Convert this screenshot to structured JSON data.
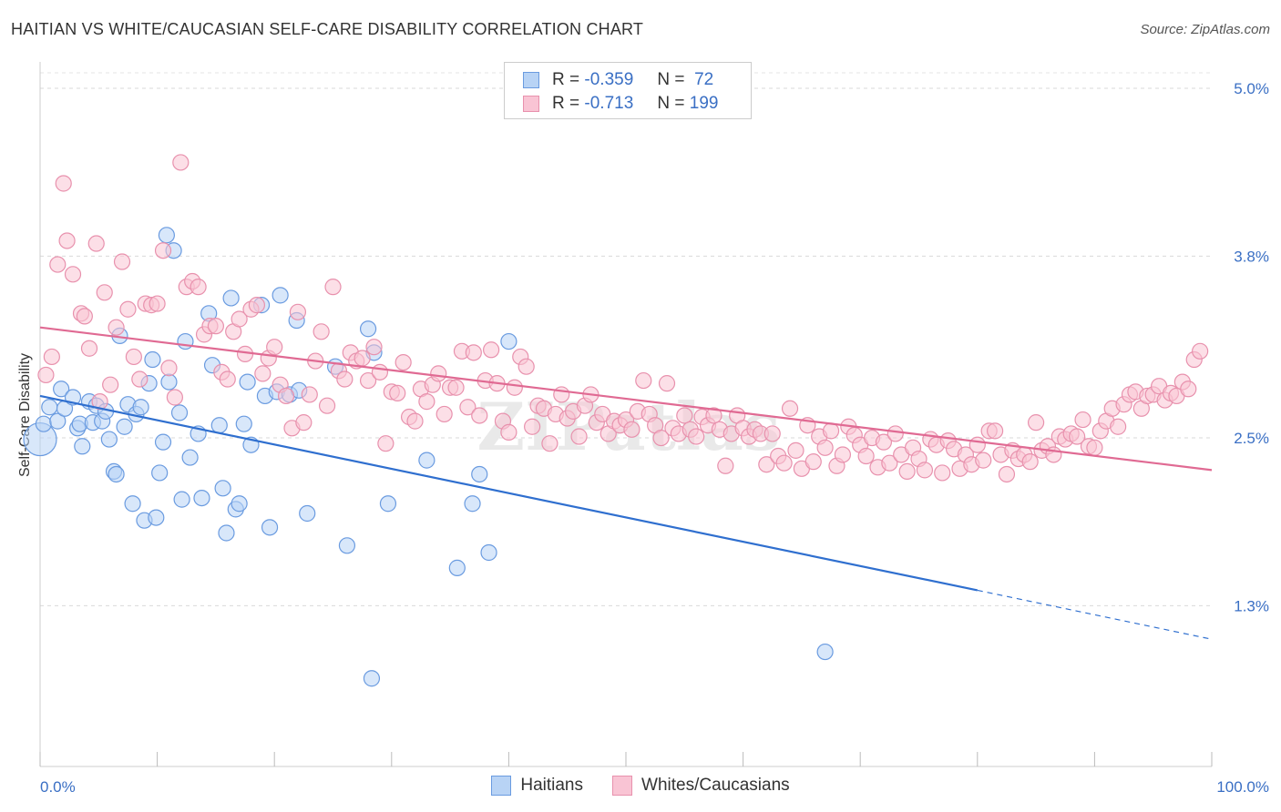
{
  "title": "HAITIAN VS WHITE/CAUCASIAN SELF-CARE DISABILITY CORRELATION CHART",
  "source": "Source: ZipAtlas.com",
  "watermark": "ZIPatlas",
  "legend": {
    "r_label": "R =",
    "n_label": "N =",
    "rows": [
      {
        "r": "-0.359",
        "n": "72",
        "color": "#b8d3f5",
        "stroke": "#6a9be0"
      },
      {
        "r": "-0.713",
        "n": "199",
        "color": "#f9c4d4",
        "stroke": "#e891ad"
      }
    ]
  },
  "bottom_legend": [
    {
      "label": "Haitians",
      "color": "#b8d3f5",
      "stroke": "#6a9be0"
    },
    {
      "label": "Whites/Caucasians",
      "color": "#f9c4d4",
      "stroke": "#e891ad"
    }
  ],
  "chart_data": {
    "type": "scatter",
    "title": "HAITIAN VS WHITE/CAUCASIAN SELF-CARE DISABILITY CORRELATION CHART",
    "xlabel": "",
    "ylabel": "Self-Care Disability",
    "x_tick_labels": [
      "0.0%",
      "100.0%"
    ],
    "y_tick_labels": [
      "5.0%",
      "3.8%",
      "2.5%",
      "1.3%"
    ],
    "y_ticks": [
      5.0,
      3.8,
      2.5,
      1.3
    ],
    "xlim": [
      0,
      100
    ],
    "ylim": [
      0.15,
      5.15
    ],
    "grid": "horizontal dashed",
    "legend_position": "top-center",
    "series": [
      {
        "name": "Haitians",
        "color": "#6a9be0",
        "fill": "#b8d3f5",
        "trend": {
          "x": [
            0,
            80
          ],
          "y": [
            2.8,
            1.41
          ],
          "dashed_to": [
            100,
            1.06
          ]
        },
        "points": [
          [
            0,
            2.49
          ],
          [
            0.3,
            2.6
          ],
          [
            0.8,
            2.72
          ],
          [
            1.5,
            2.62
          ],
          [
            1.8,
            2.85
          ],
          [
            2.1,
            2.71
          ],
          [
            2.8,
            2.79
          ],
          [
            3.2,
            2.57
          ],
          [
            3.4,
            2.6
          ],
          [
            3.6,
            2.44
          ],
          [
            4.2,
            2.76
          ],
          [
            4.5,
            2.61
          ],
          [
            4.8,
            2.73
          ],
          [
            5.3,
            2.62
          ],
          [
            5.6,
            2.69
          ],
          [
            5.9,
            2.49
          ],
          [
            6.3,
            2.26
          ],
          [
            6.5,
            2.24
          ],
          [
            6.8,
            3.23
          ],
          [
            7.2,
            2.58
          ],
          [
            7.5,
            2.74
          ],
          [
            7.9,
            2.03
          ],
          [
            8.2,
            2.67
          ],
          [
            8.6,
            2.72
          ],
          [
            8.9,
            1.91
          ],
          [
            9.3,
            2.89
          ],
          [
            9.6,
            3.06
          ],
          [
            9.9,
            1.93
          ],
          [
            10.2,
            2.25
          ],
          [
            10.5,
            2.47
          ],
          [
            10.8,
            3.95
          ],
          [
            11.0,
            2.9
          ],
          [
            11.4,
            3.84
          ],
          [
            11.9,
            2.68
          ],
          [
            12.1,
            2.06
          ],
          [
            12.4,
            3.19
          ],
          [
            12.8,
            2.36
          ],
          [
            13.5,
            2.53
          ],
          [
            13.8,
            2.07
          ],
          [
            14.4,
            3.39
          ],
          [
            14.7,
            3.02
          ],
          [
            15.3,
            2.59
          ],
          [
            15.6,
            2.14
          ],
          [
            15.9,
            1.82
          ],
          [
            16.3,
            3.5
          ],
          [
            16.7,
            1.99
          ],
          [
            17.0,
            2.03
          ],
          [
            17.4,
            2.6
          ],
          [
            17.7,
            2.9
          ],
          [
            18.0,
            2.45
          ],
          [
            18.9,
            3.45
          ],
          [
            19.2,
            2.8
          ],
          [
            19.6,
            1.86
          ],
          [
            20.2,
            2.83
          ],
          [
            20.5,
            3.52
          ],
          [
            21.3,
            2.81
          ],
          [
            21.9,
            3.34
          ],
          [
            22.1,
            2.84
          ],
          [
            22.8,
            1.96
          ],
          [
            25.2,
            3.01
          ],
          [
            26.2,
            1.73
          ],
          [
            28.0,
            3.28
          ],
          [
            28.3,
            0.78
          ],
          [
            28.5,
            3.11
          ],
          [
            29.7,
            2.03
          ],
          [
            33.0,
            2.34
          ],
          [
            35.6,
            1.57
          ],
          [
            36.9,
            2.03
          ],
          [
            37.5,
            2.24
          ],
          [
            38.3,
            1.68
          ],
          [
            40.0,
            3.19
          ],
          [
            67.0,
            0.97
          ]
        ]
      },
      {
        "name": "Whites/Caucasians",
        "color": "#e891ad",
        "fill": "#f9c4d4",
        "trend": {
          "x": [
            0,
            100
          ],
          "y": [
            3.29,
            2.27
          ]
        },
        "points": [
          [
            0.5,
            2.95
          ],
          [
            1.0,
            3.08
          ],
          [
            1.5,
            3.74
          ],
          [
            2.0,
            4.32
          ],
          [
            2.3,
            3.91
          ],
          [
            2.8,
            3.67
          ],
          [
            3.5,
            3.39
          ],
          [
            3.8,
            3.37
          ],
          [
            4.2,
            3.14
          ],
          [
            4.8,
            3.89
          ],
          [
            5.1,
            2.76
          ],
          [
            5.5,
            3.54
          ],
          [
            6.0,
            2.88
          ],
          [
            6.5,
            3.29
          ],
          [
            7.0,
            3.76
          ],
          [
            7.5,
            3.42
          ],
          [
            8.0,
            3.08
          ],
          [
            8.5,
            2.92
          ],
          [
            9.0,
            3.46
          ],
          [
            9.5,
            3.45
          ],
          [
            10.0,
            3.46
          ],
          [
            10.5,
            3.84
          ],
          [
            11.0,
            3.0
          ],
          [
            11.5,
            2.79
          ],
          [
            12.0,
            4.47
          ],
          [
            12.5,
            3.58
          ],
          [
            13.0,
            3.62
          ],
          [
            13.5,
            3.58
          ],
          [
            14.0,
            3.24
          ],
          [
            14.5,
            3.3
          ],
          [
            15.0,
            3.3
          ],
          [
            15.5,
            2.97
          ],
          [
            16.0,
            2.92
          ],
          [
            16.5,
            3.26
          ],
          [
            17.0,
            3.35
          ],
          [
            17.5,
            3.1
          ],
          [
            18.0,
            3.42
          ],
          [
            18.5,
            3.45
          ],
          [
            19.0,
            2.96
          ],
          [
            19.5,
            3.07
          ],
          [
            20.0,
            3.15
          ],
          [
            20.5,
            2.88
          ],
          [
            21.0,
            2.8
          ],
          [
            21.5,
            2.57
          ],
          [
            22.0,
            3.4
          ],
          [
            22.5,
            2.61
          ],
          [
            23.0,
            2.81
          ],
          [
            23.5,
            3.05
          ],
          [
            24.0,
            3.26
          ],
          [
            24.5,
            2.73
          ],
          [
            25.0,
            3.58
          ],
          [
            25.5,
            2.98
          ],
          [
            26.0,
            2.92
          ],
          [
            26.5,
            3.11
          ],
          [
            27.0,
            3.05
          ],
          [
            27.5,
            3.07
          ],
          [
            28.0,
            2.91
          ],
          [
            28.5,
            3.15
          ],
          [
            29.0,
            2.97
          ],
          [
            29.5,
            2.46
          ],
          [
            30.0,
            2.83
          ],
          [
            30.5,
            2.82
          ],
          [
            31.0,
            3.04
          ],
          [
            31.5,
            2.65
          ],
          [
            32.0,
            2.62
          ],
          [
            32.5,
            2.85
          ],
          [
            33.0,
            2.76
          ],
          [
            33.5,
            2.88
          ],
          [
            34.0,
            2.96
          ],
          [
            34.5,
            2.67
          ],
          [
            35.0,
            2.86
          ],
          [
            35.5,
            2.86
          ],
          [
            36.0,
            3.12
          ],
          [
            36.5,
            2.72
          ],
          [
            37.0,
            3.11
          ],
          [
            37.5,
            2.66
          ],
          [
            38.0,
            2.91
          ],
          [
            38.5,
            3.13
          ],
          [
            39.0,
            2.89
          ],
          [
            39.5,
            2.62
          ],
          [
            40.0,
            2.54
          ],
          [
            40.5,
            2.86
          ],
          [
            41.0,
            3.08
          ],
          [
            41.5,
            3.01
          ],
          [
            42.0,
            2.58
          ],
          [
            42.5,
            2.73
          ],
          [
            43.0,
            2.71
          ],
          [
            43.5,
            2.46
          ],
          [
            44.0,
            2.67
          ],
          [
            44.5,
            2.81
          ],
          [
            45.0,
            2.64
          ],
          [
            45.5,
            2.69
          ],
          [
            46.0,
            2.51
          ],
          [
            46.5,
            2.73
          ],
          [
            47.0,
            2.81
          ],
          [
            47.5,
            2.61
          ],
          [
            48.0,
            2.67
          ],
          [
            48.5,
            2.53
          ],
          [
            49.0,
            2.62
          ],
          [
            49.5,
            2.59
          ],
          [
            50.0,
            2.63
          ],
          [
            50.5,
            2.56
          ],
          [
            51.0,
            2.69
          ],
          [
            51.5,
            2.91
          ],
          [
            52.0,
            2.67
          ],
          [
            52.5,
            2.59
          ],
          [
            53.0,
            2.5
          ],
          [
            53.5,
            2.89
          ],
          [
            54.0,
            2.57
          ],
          [
            54.5,
            2.53
          ],
          [
            55.0,
            2.66
          ],
          [
            55.5,
            2.56
          ],
          [
            56.0,
            2.51
          ],
          [
            56.5,
            2.65
          ],
          [
            57.0,
            2.59
          ],
          [
            57.5,
            2.66
          ],
          [
            58.0,
            2.56
          ],
          [
            58.5,
            2.3
          ],
          [
            59.0,
            2.53
          ],
          [
            59.5,
            2.66
          ],
          [
            60.0,
            2.57
          ],
          [
            60.5,
            2.51
          ],
          [
            61.0,
            2.56
          ],
          [
            61.5,
            2.53
          ],
          [
            62.0,
            2.31
          ],
          [
            62.5,
            2.53
          ],
          [
            63.0,
            2.37
          ],
          [
            63.5,
            2.32
          ],
          [
            64.0,
            2.71
          ],
          [
            64.5,
            2.41
          ],
          [
            65.0,
            2.28
          ],
          [
            65.5,
            2.59
          ],
          [
            66.0,
            2.33
          ],
          [
            66.5,
            2.51
          ],
          [
            67.0,
            2.43
          ],
          [
            67.5,
            2.55
          ],
          [
            68.0,
            2.3
          ],
          [
            68.5,
            2.38
          ],
          [
            69.0,
            2.58
          ],
          [
            69.5,
            2.52
          ],
          [
            70.0,
            2.45
          ],
          [
            70.5,
            2.37
          ],
          [
            71.0,
            2.5
          ],
          [
            71.5,
            2.29
          ],
          [
            72.0,
            2.47
          ],
          [
            72.5,
            2.32
          ],
          [
            73.0,
            2.53
          ],
          [
            73.5,
            2.38
          ],
          [
            74.0,
            2.26
          ],
          [
            74.5,
            2.43
          ],
          [
            75.0,
            2.35
          ],
          [
            75.5,
            2.27
          ],
          [
            76.0,
            2.49
          ],
          [
            76.5,
            2.45
          ],
          [
            77.0,
            2.25
          ],
          [
            77.5,
            2.48
          ],
          [
            78.0,
            2.42
          ],
          [
            78.5,
            2.28
          ],
          [
            79.0,
            2.38
          ],
          [
            79.5,
            2.31
          ],
          [
            80.0,
            2.45
          ],
          [
            80.5,
            2.34
          ],
          [
            81.0,
            2.55
          ],
          [
            81.5,
            2.55
          ],
          [
            82.0,
            2.38
          ],
          [
            82.5,
            2.24
          ],
          [
            83.0,
            2.41
          ],
          [
            83.5,
            2.35
          ],
          [
            84.0,
            2.38
          ],
          [
            84.5,
            2.33
          ],
          [
            85.0,
            2.61
          ],
          [
            85.5,
            2.41
          ],
          [
            86.0,
            2.44
          ],
          [
            86.5,
            2.38
          ],
          [
            87.0,
            2.51
          ],
          [
            87.5,
            2.49
          ],
          [
            88.0,
            2.53
          ],
          [
            88.5,
            2.51
          ],
          [
            89.0,
            2.63
          ],
          [
            89.5,
            2.44
          ],
          [
            90.0,
            2.43
          ],
          [
            90.5,
            2.55
          ],
          [
            91.0,
            2.62
          ],
          [
            91.5,
            2.71
          ],
          [
            92.0,
            2.58
          ],
          [
            92.5,
            2.74
          ],
          [
            93.0,
            2.81
          ],
          [
            93.5,
            2.83
          ],
          [
            94.0,
            2.71
          ],
          [
            94.5,
            2.8
          ],
          [
            95.0,
            2.81
          ],
          [
            95.5,
            2.87
          ],
          [
            96.0,
            2.77
          ],
          [
            96.5,
            2.82
          ],
          [
            97.0,
            2.8
          ],
          [
            97.5,
            2.9
          ],
          [
            98.0,
            2.85
          ],
          [
            98.5,
            3.06
          ],
          [
            99.0,
            3.12
          ]
        ]
      }
    ]
  }
}
